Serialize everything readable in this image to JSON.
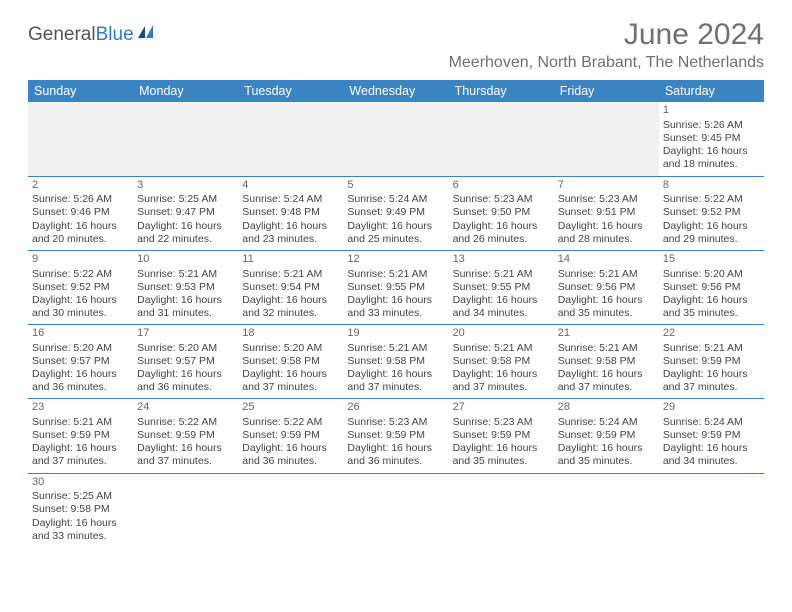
{
  "logo": {
    "general": "General",
    "blue": "Blue"
  },
  "title": "June 2024",
  "location": "Meerhoven, North Brabant, The Netherlands",
  "colors": {
    "header_bg": "#3a84c4",
    "header_text": "#ffffff",
    "border": "#3a84c4",
    "empty_bg": "#f1f1f1",
    "text": "#444444",
    "logo_blue": "#2f7bbf",
    "logo_gray": "#555555",
    "title_gray": "#707070"
  },
  "weekdays": [
    "Sunday",
    "Monday",
    "Tuesday",
    "Wednesday",
    "Thursday",
    "Friday",
    "Saturday"
  ],
  "weeks": [
    [
      null,
      null,
      null,
      null,
      null,
      null,
      {
        "d": "1",
        "rise": "5:26 AM",
        "set": "9:45 PM",
        "dl": "16 hours and 18 minutes."
      }
    ],
    [
      {
        "d": "2",
        "rise": "5:26 AM",
        "set": "9:46 PM",
        "dl": "16 hours and 20 minutes."
      },
      {
        "d": "3",
        "rise": "5:25 AM",
        "set": "9:47 PM",
        "dl": "16 hours and 22 minutes."
      },
      {
        "d": "4",
        "rise": "5:24 AM",
        "set": "9:48 PM",
        "dl": "16 hours and 23 minutes."
      },
      {
        "d": "5",
        "rise": "5:24 AM",
        "set": "9:49 PM",
        "dl": "16 hours and 25 minutes."
      },
      {
        "d": "6",
        "rise": "5:23 AM",
        "set": "9:50 PM",
        "dl": "16 hours and 26 minutes."
      },
      {
        "d": "7",
        "rise": "5:23 AM",
        "set": "9:51 PM",
        "dl": "16 hours and 28 minutes."
      },
      {
        "d": "8",
        "rise": "5:22 AM",
        "set": "9:52 PM",
        "dl": "16 hours and 29 minutes."
      }
    ],
    [
      {
        "d": "9",
        "rise": "5:22 AM",
        "set": "9:52 PM",
        "dl": "16 hours and 30 minutes."
      },
      {
        "d": "10",
        "rise": "5:21 AM",
        "set": "9:53 PM",
        "dl": "16 hours and 31 minutes."
      },
      {
        "d": "11",
        "rise": "5:21 AM",
        "set": "9:54 PM",
        "dl": "16 hours and 32 minutes."
      },
      {
        "d": "12",
        "rise": "5:21 AM",
        "set": "9:55 PM",
        "dl": "16 hours and 33 minutes."
      },
      {
        "d": "13",
        "rise": "5:21 AM",
        "set": "9:55 PM",
        "dl": "16 hours and 34 minutes."
      },
      {
        "d": "14",
        "rise": "5:21 AM",
        "set": "9:56 PM",
        "dl": "16 hours and 35 minutes."
      },
      {
        "d": "15",
        "rise": "5:20 AM",
        "set": "9:56 PM",
        "dl": "16 hours and 35 minutes."
      }
    ],
    [
      {
        "d": "16",
        "rise": "5:20 AM",
        "set": "9:57 PM",
        "dl": "16 hours and 36 minutes."
      },
      {
        "d": "17",
        "rise": "5:20 AM",
        "set": "9:57 PM",
        "dl": "16 hours and 36 minutes."
      },
      {
        "d": "18",
        "rise": "5:20 AM",
        "set": "9:58 PM",
        "dl": "16 hours and 37 minutes."
      },
      {
        "d": "19",
        "rise": "5:21 AM",
        "set": "9:58 PM",
        "dl": "16 hours and 37 minutes."
      },
      {
        "d": "20",
        "rise": "5:21 AM",
        "set": "9:58 PM",
        "dl": "16 hours and 37 minutes."
      },
      {
        "d": "21",
        "rise": "5:21 AM",
        "set": "9:58 PM",
        "dl": "16 hours and 37 minutes."
      },
      {
        "d": "22",
        "rise": "5:21 AM",
        "set": "9:59 PM",
        "dl": "16 hours and 37 minutes."
      }
    ],
    [
      {
        "d": "23",
        "rise": "5:21 AM",
        "set": "9:59 PM",
        "dl": "16 hours and 37 minutes."
      },
      {
        "d": "24",
        "rise": "5:22 AM",
        "set": "9:59 PM",
        "dl": "16 hours and 37 minutes."
      },
      {
        "d": "25",
        "rise": "5:22 AM",
        "set": "9:59 PM",
        "dl": "16 hours and 36 minutes."
      },
      {
        "d": "26",
        "rise": "5:23 AM",
        "set": "9:59 PM",
        "dl": "16 hours and 36 minutes."
      },
      {
        "d": "27",
        "rise": "5:23 AM",
        "set": "9:59 PM",
        "dl": "16 hours and 35 minutes."
      },
      {
        "d": "28",
        "rise": "5:24 AM",
        "set": "9:59 PM",
        "dl": "16 hours and 35 minutes."
      },
      {
        "d": "29",
        "rise": "5:24 AM",
        "set": "9:59 PM",
        "dl": "16 hours and 34 minutes."
      }
    ],
    [
      {
        "d": "30",
        "rise": "5:25 AM",
        "set": "9:58 PM",
        "dl": "16 hours and 33 minutes."
      },
      null,
      null,
      null,
      null,
      null,
      null
    ]
  ],
  "labels": {
    "sunrise": "Sunrise:",
    "sunset": "Sunset:",
    "daylight": "Daylight:"
  }
}
